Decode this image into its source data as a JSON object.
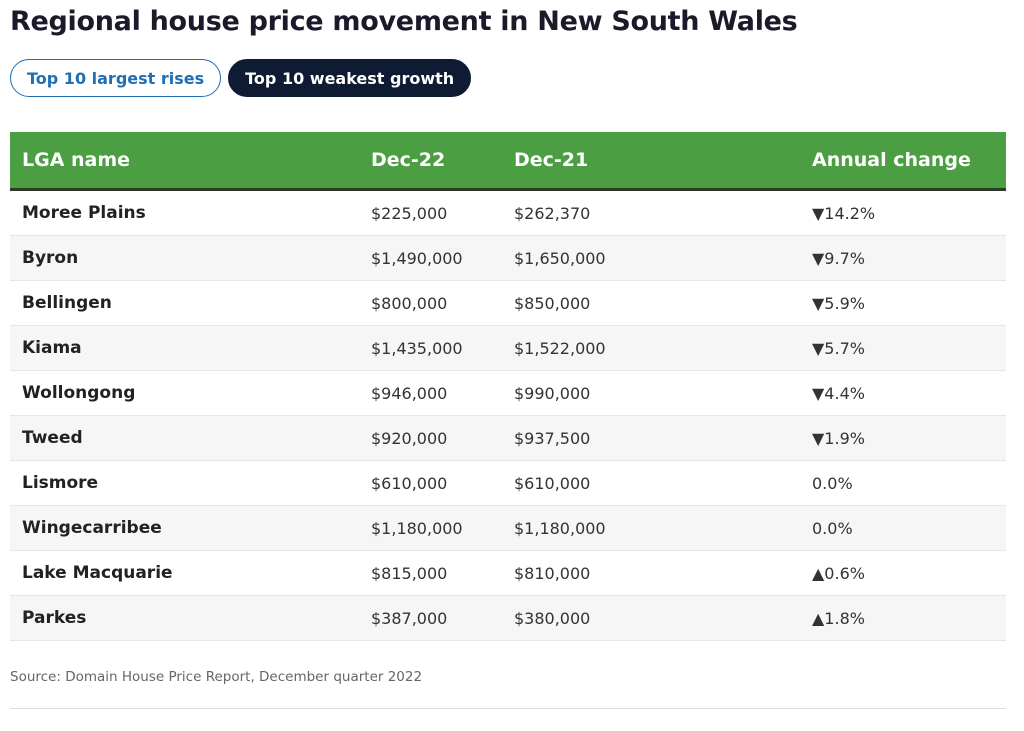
{
  "title": "Regional house price movement in New South Wales",
  "tabs": [
    "Top 10 largest rises",
    "Top 10 weakest growth"
  ],
  "active_tab": 1,
  "table": {
    "header": [
      "LGA name",
      "Dec-22",
      "Dec-21",
      "Annual change"
    ],
    "rows": [
      [
        "Moree Plains",
        "$225,000",
        "$262,370",
        "▼14.2%"
      ],
      [
        "Byron",
        "$1,490,000",
        "$1,650,000",
        "▼9.7%"
      ],
      [
        "Bellingen",
        "$800,000",
        "$850,000",
        "▼5.9%"
      ],
      [
        "Kiama",
        "$1,435,000",
        "$1,522,000",
        "▼5.7%"
      ],
      [
        "Wollongong",
        "$946,000",
        "$990,000",
        "▼4.4%"
      ],
      [
        "Tweed",
        "$920,000",
        "$937,500",
        "▼1.9%"
      ],
      [
        "Lismore",
        "$610,000",
        "$610,000",
        "0.0%"
      ],
      [
        "Wingecarribee",
        "$1,180,000",
        "$1,180,000",
        "0.0%"
      ],
      [
        "Lake Macquarie",
        "$815,000",
        "$810,000",
        "▲0.6%"
      ],
      [
        "Parkes",
        "$387,000",
        "$380,000",
        "▲1.8%"
      ]
    ]
  },
  "source": "Source: Domain House Price Report, December quarter 2022"
}
